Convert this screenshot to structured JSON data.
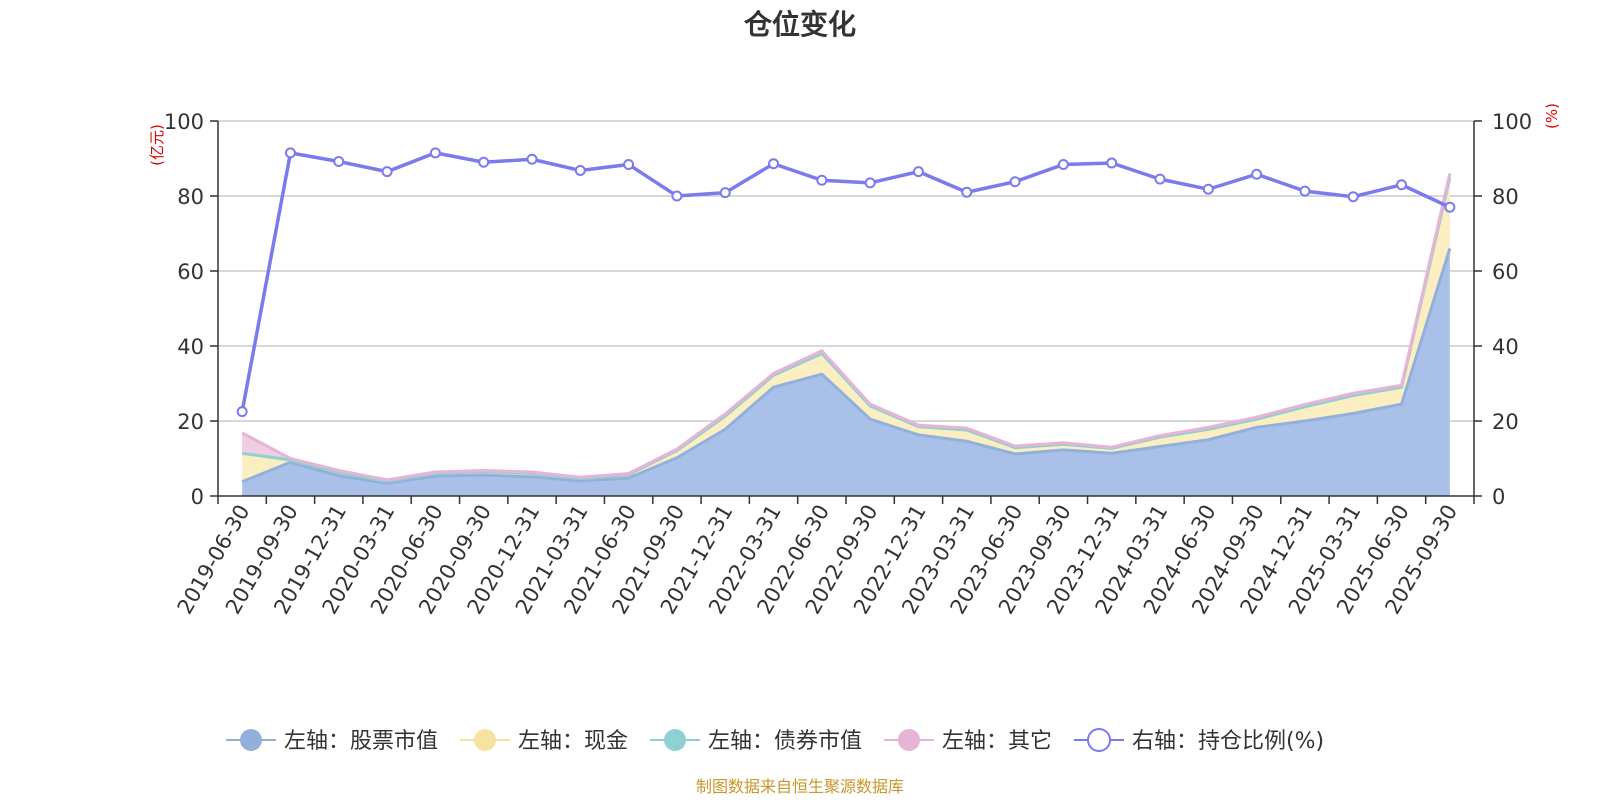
{
  "chart_data": {
    "type": "area",
    "title": "仓位变化",
    "left_unit": "(亿元)",
    "right_unit": "(%)",
    "left_ylim": [
      0,
      100
    ],
    "right_ylim": [
      0,
      100
    ],
    "left_ticks": [
      "0",
      "20",
      "40",
      "60",
      "80",
      "100"
    ],
    "right_ticks": [
      "0",
      "20",
      "40",
      "60",
      "80",
      "100"
    ],
    "grid": true,
    "legend_position": "bottom",
    "categories": [
      "2019-06-30",
      "2019-09-30",
      "2019-12-31",
      "2020-03-31",
      "2020-06-30",
      "2020-09-30",
      "2020-12-31",
      "2021-03-31",
      "2021-06-30",
      "2021-09-30",
      "2021-12-31",
      "2022-03-31",
      "2022-06-30",
      "2022-09-30",
      "2022-12-31",
      "2023-03-31",
      "2023-06-30",
      "2023-09-30",
      "2023-12-31",
      "2024-03-31",
      "2024-06-30",
      "2024-09-30",
      "2024-12-31",
      "2025-03-31",
      "2025-06-30",
      "2025-09-30"
    ],
    "series": [
      {
        "name": "左轴：股票市值",
        "axis": "left",
        "stack": "s",
        "color": "#a9c1e8",
        "line_color": "#93b0dd",
        "values": [
          3.8,
          9.0,
          5.4,
          3.4,
          5.3,
          5.6,
          5.1,
          4.0,
          4.8,
          10.2,
          17.8,
          29.0,
          32.5,
          20.5,
          16.3,
          14.6,
          11.2,
          12.3,
          11.4,
          13.2,
          15.0,
          18.3,
          20.0,
          22.0,
          24.5,
          66.0
        ]
      },
      {
        "name": "左轴：现金",
        "axis": "left",
        "stack": "s",
        "color": "#fbeec0",
        "line_color": "#f6e3a1",
        "values": [
          7.6,
          0.6,
          0.9,
          0.6,
          0.8,
          0.9,
          0.9,
          0.7,
          0.9,
          1.9,
          3.5,
          3.2,
          5.5,
          3.5,
          2.2,
          3.0,
          1.7,
          1.5,
          1.3,
          2.5,
          2.8,
          2.2,
          3.8,
          4.8,
          4.5,
          19.0
        ]
      },
      {
        "name": "左轴：债券市值",
        "axis": "left",
        "stack": "s",
        "color": "#98d3d6",
        "line_color": "#8fd0d3",
        "values": [
          0,
          0,
          0,
          0,
          0,
          0,
          0,
          0,
          0,
          0,
          0,
          0,
          0,
          0,
          0,
          0,
          0,
          0,
          0,
          0,
          0,
          0,
          0,
          0,
          0,
          0
        ]
      },
      {
        "name": "左轴：其它",
        "axis": "left",
        "stack": "s",
        "color": "#f1cde3",
        "line_color": "#e8b4d6",
        "values": [
          5.4,
          0.4,
          0.5,
          0.3,
          0.3,
          0.3,
          0.4,
          0.3,
          0.3,
          0.4,
          0.6,
          0.5,
          0.7,
          0.5,
          0.4,
          0.5,
          0.4,
          0.4,
          0.3,
          0.4,
          0.5,
          0.5,
          0.6,
          0.6,
          0.5,
          1.0
        ]
      },
      {
        "name": "右轴：持仓比例(%)",
        "axis": "right",
        "type": "line",
        "color": "#7b7bee",
        "values": [
          22.5,
          91.5,
          89.2,
          86.5,
          91.5,
          89.0,
          89.8,
          86.8,
          88.4,
          80.0,
          80.9,
          88.6,
          84.2,
          83.5,
          86.5,
          81.0,
          83.8,
          88.4,
          88.8,
          84.5,
          81.8,
          85.8,
          81.3,
          79.8,
          83.0,
          77.0
        ]
      }
    ]
  },
  "source_note": "制图数据来自恒生聚源数据库"
}
